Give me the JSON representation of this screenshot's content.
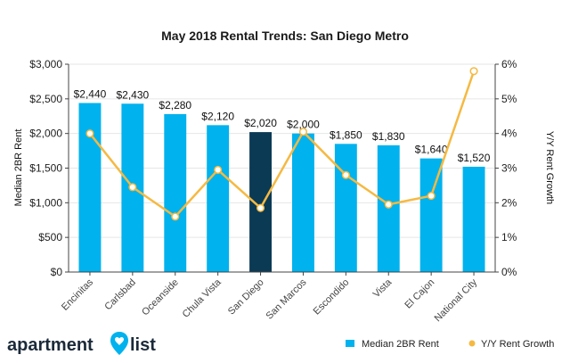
{
  "chart_data": {
    "type": "bar",
    "title": "May 2018 Rental Trends: San Diego Metro",
    "categories": [
      "Encinitas",
      "Carlsbad",
      "Oceanside",
      "Chula Vista",
      "San Diego",
      "San Marcos",
      "Escondido",
      "Vista",
      "El Cajon",
      "National City"
    ],
    "series": [
      {
        "name": "Median 2BR Rent",
        "type": "bar",
        "axis": "left",
        "color": "#00b2ee",
        "highlight_color": "#0b3a55",
        "highlight_category": "San Diego",
        "values": [
          2440,
          2430,
          2280,
          2120,
          2020,
          2000,
          1850,
          1830,
          1640,
          1520
        ],
        "labels": [
          "$2,440",
          "$2,430",
          "$2,280",
          "$2,120",
          "$2,020",
          "$2,000",
          "$1,850",
          "$1,830",
          "$1,640",
          "$1,520"
        ]
      },
      {
        "name": "Y/Y Rent Growth",
        "type": "line",
        "axis": "right",
        "color": "#f5b942",
        "values": [
          4.0,
          2.45,
          1.6,
          2.95,
          1.85,
          4.05,
          2.8,
          1.95,
          2.2,
          5.8
        ]
      }
    ],
    "ylabel": "Median 2BR Rent",
    "y2label": "Y/Y Rent Growth",
    "ylim": [
      0,
      3000
    ],
    "y2lim": [
      0,
      6
    ],
    "yticks": [
      "$0",
      "$500",
      "$1,000",
      "$1,500",
      "$2,000",
      "$2,500",
      "$3,000"
    ],
    "y2ticks": [
      "0%",
      "1%",
      "2%",
      "3%",
      "4%",
      "5%",
      "6%"
    ],
    "grid": true,
    "legend_position": "bottom-right"
  },
  "brand": {
    "name_part1": "apartment",
    "name_part2": "list",
    "icon": "location-pin-heart-icon",
    "icon_color": "#00b2ee"
  },
  "legend": {
    "bar_label": "Median 2BR Rent",
    "line_label": "Y/Y Rent Growth"
  }
}
